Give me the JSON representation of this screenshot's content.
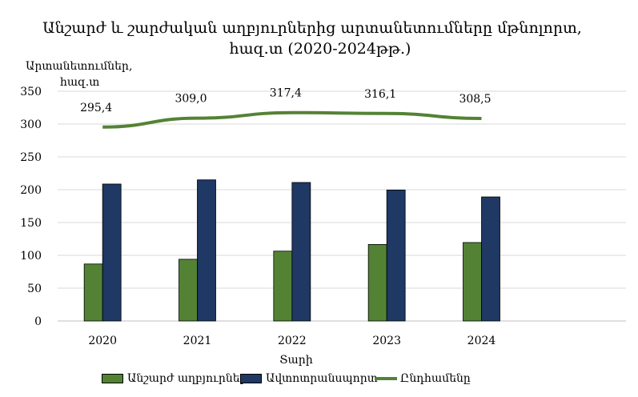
{
  "chart_data": {
    "type": "bar+line",
    "title": "Անշարժ և շարժական աղբյուրներից արտանետումները մթնոլորտ,",
    "title_line2": "հազ.տ (2020-2024թթ.)",
    "ylabel_line1": "Արտանետումներ,",
    "ylabel_line2": "հազ.տ",
    "xlabel": "Տարի",
    "categories": [
      "2020",
      "2021",
      "2022",
      "2023",
      "2024"
    ],
    "ylim": [
      0,
      350
    ],
    "yticks": [
      "0",
      "50",
      "100",
      "150",
      "200",
      "250",
      "300",
      "350"
    ],
    "grid": true,
    "legend_position": "bottom",
    "series": [
      {
        "name": "Անշարժ աղբյուրներ",
        "type": "bar",
        "color": "#548235",
        "values": [
          86.8,
          94.0,
          106.4,
          116.6,
          119.5
        ]
      },
      {
        "name": "Ավտոտրանսպորտ",
        "type": "bar",
        "color": "#1F3864",
        "values": [
          208.6,
          215.0,
          211.0,
          199.5,
          189.0
        ]
      },
      {
        "name": "Ընդհամենը",
        "type": "line",
        "color": "#548235",
        "values": [
          295.4,
          309.0,
          317.4,
          316.1,
          308.5
        ],
        "labels": [
          "295,4",
          "309,0",
          "317,4",
          "316,1",
          "308,5"
        ]
      }
    ]
  }
}
